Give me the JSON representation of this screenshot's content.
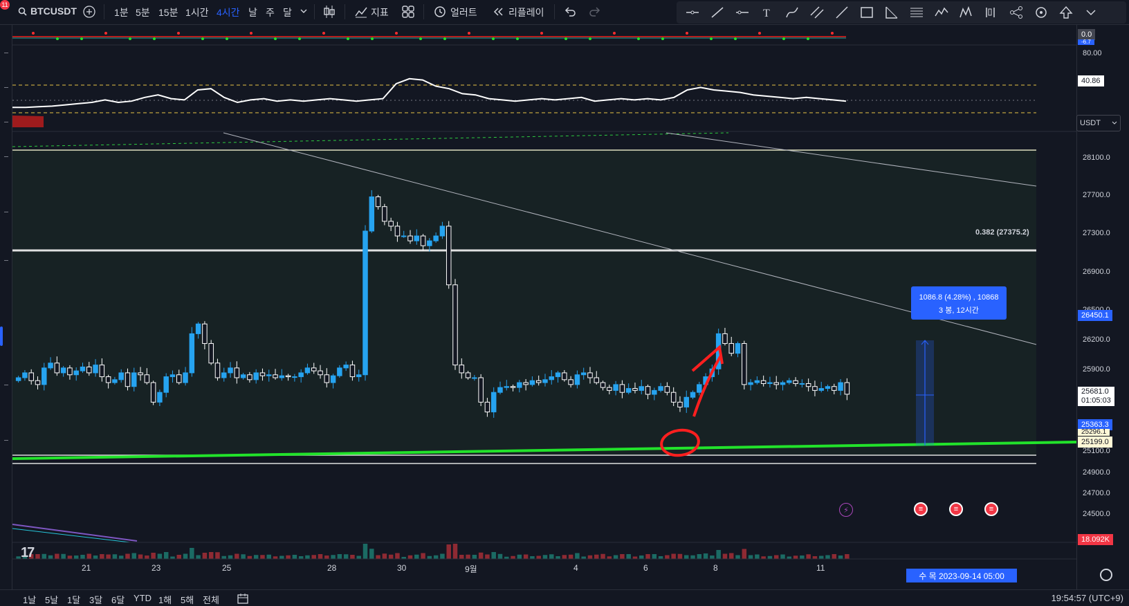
{
  "notification_count": "11",
  "symbol": "BTCUSDT",
  "timeframes": [
    "1분",
    "5분",
    "15분",
    "1시간",
    "4시간",
    "날",
    "주",
    "달"
  ],
  "active_timeframe": "4시간",
  "toolbar": {
    "indicators_label": "지표",
    "alert_label": "얼러트",
    "replay_label": "리플레이"
  },
  "indicator_panel": {
    "top_value": "0.0",
    "top_value_sub": "-6.7",
    "rsi_levels": [
      "80.00"
    ],
    "rsi_current": "40.86"
  },
  "price_scale": {
    "currency": "USDT",
    "labels": [
      "28100.0",
      "27700.0",
      "27300.0",
      "26900.0",
      "26500.0",
      "26200.0",
      "25900.0",
      "25100.0",
      "24900.0",
      "24700.0",
      "24500.0"
    ],
    "measure_top": "26450.1",
    "current_price": "25681.0",
    "countdown": "01:05:03",
    "green_line_price": "25363.3",
    "support_upper": "25296.1",
    "support_lower": "25199.0",
    "volume_label": "18.092K"
  },
  "fib_label": "0.382 (27375.2)",
  "measure": {
    "line1": "1086.8 (4.28%) , 10868",
    "line2": "3 봉, 12시간"
  },
  "date_axis": [
    "21",
    "23",
    "25",
    "28",
    "30",
    "9월",
    "4",
    "6",
    "8",
    "11"
  ],
  "crosshair_date": "수 목 2023-09-14  05:00",
  "bottom_ranges": [
    "1날",
    "5날",
    "1달",
    "3달",
    "6달",
    "YTD",
    "1해",
    "5해",
    "전체"
  ],
  "clock": "19:54:57 (UTC+9)",
  "colors": {
    "background": "#131722",
    "up_candle": "#26a3f0",
    "down_candle": "#ffffff",
    "trend_green": "#22e32b",
    "accent": "#2962ff",
    "annotation_red": "#ff1f1f"
  }
}
